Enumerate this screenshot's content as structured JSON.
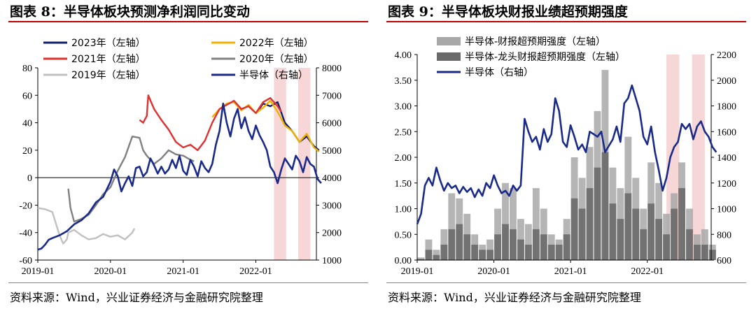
{
  "left": {
    "title": "图表 8：半导体板块预测净利润同比变动",
    "source": "资料来源：Wind，兴业证券经济与金融研究院整理",
    "colors": {
      "s2023": "#102070",
      "s2022": "#f0b000",
      "s2021": "#e03030",
      "s2020": "#808080",
      "s2019": "#c0c0c0",
      "semi": "#1a2a8a",
      "shade": "#f6d6d6"
    }
  },
  "right": {
    "title": "图表 9：半导体板块财报业绩超预期强度",
    "source": "资料来源：Wind，兴业证券经济与金融研究院整理",
    "colors": {
      "semi": "#1a2a8a",
      "barLight": "#a8a8a8",
      "barDark": "#6a6a6a",
      "shade": "#f6d6d6"
    }
  },
  "chart_data": [
    {
      "type": "line",
      "title": "图表 8：半导体板块预测净利润同比变动",
      "x_ticks": [
        "2019-01",
        "2020-01",
        "2021-01",
        "2022-01"
      ],
      "x_range": [
        "2019-01",
        "2022-11"
      ],
      "y_left": {
        "lim": [
          -60,
          80
        ],
        "ticks": [
          "80",
          "60",
          "40",
          "20",
          "0",
          "-20",
          "-40",
          "-60"
        ]
      },
      "y_right": {
        "lim": [
          1000,
          8000
        ],
        "ticks": [
          "8000",
          "7000",
          "6000",
          "5000",
          "4000",
          "3000",
          "2000",
          "1000"
        ]
      },
      "shaded_ranges": [
        [
          "2022-04",
          "2022-06"
        ],
        [
          "2022-08",
          "2022-10"
        ]
      ],
      "series": [
        {
          "name": "2023年（左轴）",
          "key": "s2023",
          "axis": "left",
          "x": [
            2022.02,
            2022.1,
            2022.2,
            2022.3,
            2022.4,
            2022.5,
            2022.6,
            2022.7,
            2022.8,
            2022.87
          ],
          "y": [
            48,
            54,
            52,
            55,
            40,
            34,
            26,
            30,
            23,
            20
          ]
        },
        {
          "name": "2022年（左轴）",
          "key": "s2022",
          "axis": "left",
          "x": [
            2021.4,
            2021.5,
            2021.6,
            2021.7,
            2021.8,
            2021.9,
            2022.0,
            2022.1,
            2022.2,
            2022.3,
            2022.4,
            2022.5,
            2022.6,
            2022.7,
            2022.8,
            2022.87
          ],
          "y": [
            44,
            50,
            54,
            55,
            49,
            53,
            47,
            51,
            56,
            48,
            38,
            34,
            26,
            32,
            22,
            19
          ]
        },
        {
          "name": "2021年（左轴）",
          "key": "s2021",
          "axis": "left",
          "x": [
            2020.4,
            2020.45,
            2020.5,
            2020.52,
            2020.6,
            2020.7,
            2020.8,
            2020.9,
            2021.0,
            2021.1,
            2021.2,
            2021.3,
            2021.4,
            2021.5,
            2021.6,
            2021.7,
            2021.8,
            2021.9,
            2022.0,
            2022.1,
            2022.2,
            2022.3,
            2022.35
          ],
          "y": [
            42,
            40,
            45,
            60,
            50,
            42,
            35,
            26,
            22,
            24,
            20,
            27,
            40,
            50,
            53,
            56,
            50,
            52,
            47,
            55,
            58,
            52,
            48
          ]
        },
        {
          "name": "2020年（左轴）",
          "key": "s2020",
          "axis": "left",
          "x": [
            2019.42,
            2019.45,
            2019.5,
            2019.6,
            2019.7,
            2019.8,
            2019.9,
            2020.0,
            2020.1,
            2020.2,
            2020.3,
            2020.4,
            2020.45,
            2020.5,
            2020.6,
            2020.7,
            2020.8,
            2020.9,
            2021.0,
            2021.1,
            2021.15
          ],
          "y": [
            -8,
            -22,
            -32,
            -30,
            -27,
            -20,
            -12,
            -7,
            5,
            15,
            30,
            29,
            20,
            16,
            10,
            14,
            20,
            17,
            16,
            13,
            12
          ]
        },
        {
          "name": "2019年（左轴）",
          "key": "s2019",
          "axis": "left",
          "x": [
            2019.0,
            2019.1,
            2019.2,
            2019.3,
            2019.35,
            2019.4,
            2019.42,
            2019.5,
            2019.6,
            2019.7,
            2019.8,
            2019.9,
            2020.0,
            2020.1,
            2020.2,
            2020.3,
            2020.33
          ],
          "y": [
            -22,
            -23,
            -25,
            -42,
            -48,
            -45,
            -40,
            -38,
            -42,
            -45,
            -44,
            -41,
            -43,
            -42,
            -45,
            -40,
            -37
          ]
        },
        {
          "name": "半导体（右轴）",
          "key": "semi",
          "axis": "right",
          "x": [
            2019.0,
            2019.05,
            2019.1,
            2019.15,
            2019.2,
            2019.3,
            2019.4,
            2019.5,
            2019.6,
            2019.7,
            2019.8,
            2019.9,
            2020.0,
            2020.05,
            2020.1,
            2020.15,
            2020.2,
            2020.25,
            2020.3,
            2020.35,
            2020.4,
            2020.45,
            2020.5,
            2020.55,
            2020.6,
            2020.65,
            2020.7,
            2020.75,
            2020.8,
            2020.85,
            2020.9,
            2020.95,
            2021.0,
            2021.05,
            2021.1,
            2021.15,
            2021.2,
            2021.25,
            2021.3,
            2021.35,
            2021.4,
            2021.45,
            2021.5,
            2021.55,
            2021.6,
            2021.65,
            2021.7,
            2021.75,
            2021.8,
            2021.85,
            2021.9,
            2021.95,
            2022.0,
            2022.05,
            2022.1,
            2022.15,
            2022.2,
            2022.25,
            2022.3,
            2022.35,
            2022.4,
            2022.45,
            2022.5,
            2022.55,
            2022.6,
            2022.65,
            2022.7,
            2022.75,
            2022.8,
            2022.85,
            2022.9
          ],
          "y": [
            1380,
            1420,
            1560,
            1740,
            1800,
            1900,
            2050,
            2300,
            2450,
            2700,
            3100,
            3300,
            3850,
            4300,
            4050,
            3500,
            3800,
            4050,
            3700,
            4350,
            4400,
            4050,
            4200,
            4700,
            4450,
            4150,
            4400,
            4150,
            4300,
            4650,
            4350,
            4800,
            4250,
            4100,
            4650,
            4400,
            4050,
            4600,
            4350,
            4200,
            4500,
            5200,
            5700,
            6700,
            6000,
            5500,
            6150,
            6500,
            5800,
            6200,
            5700,
            5400,
            5900,
            5550,
            5300,
            5000,
            4400,
            4200,
            3800,
            4300,
            4700,
            4500,
            4300,
            4800,
            4600,
            4200,
            4750,
            4500,
            4400,
            3950,
            3800
          ]
        }
      ]
    },
    {
      "type": "area",
      "title": "图表 9：半导体板块财报业绩超预期强度",
      "x_ticks": [
        "2019-01",
        "2020-01",
        "2021-01",
        "2022-01"
      ],
      "x_range": [
        "2019-01",
        "2022-11"
      ],
      "y_left": {
        "lim": [
          0,
          4.0
        ],
        "ticks": [
          "4.00",
          "3.50",
          "3.00",
          "2.50",
          "2.00",
          "1.50",
          "1.00",
          "0.50",
          "0.00"
        ]
      },
      "y_right": {
        "lim": [
          600,
          2200
        ],
        "ticks": [
          "2200",
          "2000",
          "1800",
          "1600",
          "1400",
          "1200",
          "1000",
          "800",
          "600"
        ]
      },
      "shaded_ranges": [
        [
          "2022-04",
          "2022-06"
        ],
        [
          "2022-08",
          "2022-10"
        ]
      ],
      "series": [
        {
          "name": "半导体-财报超预期强度（左轴）",
          "key": "barLight",
          "axis": "left",
          "x": [
            2019.05,
            2019.15,
            2019.25,
            2019.35,
            2019.45,
            2019.55,
            2019.65,
            2019.75,
            2019.85,
            2019.95,
            2020.05,
            2020.15,
            2020.25,
            2020.35,
            2020.45,
            2020.55,
            2020.65,
            2020.75,
            2020.85,
            2020.95,
            2021.05,
            2021.15,
            2021.25,
            2021.35,
            2021.45,
            2021.55,
            2021.65,
            2021.75,
            2021.85,
            2021.95,
            2022.05,
            2022.15,
            2022.25,
            2022.35,
            2022.45,
            2022.55,
            2022.65,
            2022.75,
            2022.85
          ],
          "y": [
            0.05,
            0.4,
            0.2,
            0.6,
            1.3,
            1.2,
            0.9,
            0.5,
            0.3,
            0.4,
            1.0,
            1.5,
            1.4,
            0.8,
            0.7,
            1.4,
            1.0,
            0.5,
            0.4,
            0.8,
            2.0,
            1.6,
            2.2,
            2.9,
            3.7,
            1.8,
            1.4,
            2.4,
            1.6,
            1.0,
            1.9,
            1.5,
            0.9,
            1.3,
            1.9,
            1.0,
            0.5,
            0.6,
            0.3
          ]
        },
        {
          "name": "半导体-龙头财报超预期强度（左轴）",
          "key": "barDark",
          "axis": "left",
          "x": [
            2019.05,
            2019.15,
            2019.25,
            2019.35,
            2019.45,
            2019.55,
            2019.65,
            2019.75,
            2019.85,
            2019.95,
            2020.05,
            2020.15,
            2020.25,
            2020.35,
            2020.45,
            2020.55,
            2020.65,
            2020.75,
            2020.85,
            2020.95,
            2021.05,
            2021.15,
            2021.25,
            2021.35,
            2021.45,
            2021.55,
            2021.65,
            2021.75,
            2021.85,
            2021.95,
            2022.05,
            2022.15,
            2022.25,
            2022.35,
            2022.45,
            2022.55,
            2022.65,
            2022.75,
            2022.85
          ],
          "y": [
            0.02,
            0.2,
            0.1,
            0.3,
            0.6,
            0.7,
            0.5,
            0.3,
            0.2,
            0.2,
            0.5,
            0.7,
            0.6,
            0.4,
            0.3,
            0.6,
            0.5,
            0.3,
            0.3,
            0.5,
            1.2,
            1.0,
            1.4,
            1.8,
            2.1,
            1.1,
            0.8,
            1.3,
            1.0,
            0.6,
            1.1,
            0.8,
            0.5,
            1.0,
            1.4,
            0.6,
            0.3,
            0.3,
            0.2
          ]
        },
        {
          "name": "半导体（右轴）",
          "key": "semi",
          "axis": "right",
          "x": [
            2019.0,
            2019.05,
            2019.1,
            2019.15,
            2019.2,
            2019.25,
            2019.3,
            2019.35,
            2019.4,
            2019.45,
            2019.5,
            2019.55,
            2019.6,
            2019.65,
            2019.7,
            2019.75,
            2019.8,
            2019.85,
            2019.9,
            2019.95,
            2020.0,
            2020.05,
            2020.1,
            2020.15,
            2020.2,
            2020.25,
            2020.3,
            2020.35,
            2020.4,
            2020.45,
            2020.5,
            2020.55,
            2020.6,
            2020.65,
            2020.7,
            2020.75,
            2020.8,
            2020.85,
            2020.9,
            2020.95,
            2021.0,
            2021.05,
            2021.1,
            2021.15,
            2021.2,
            2021.25,
            2021.3,
            2021.35,
            2021.4,
            2021.45,
            2021.5,
            2021.55,
            2021.6,
            2021.65,
            2021.7,
            2021.75,
            2021.8,
            2021.85,
            2021.9,
            2021.95,
            2022.0,
            2022.05,
            2022.1,
            2022.15,
            2022.2,
            2022.25,
            2022.3,
            2022.35,
            2022.4,
            2022.45,
            2022.5,
            2022.55,
            2022.6,
            2022.65,
            2022.7,
            2022.75,
            2022.8,
            2022.85,
            2022.9
          ],
          "y": [
            880,
            960,
            1180,
            1240,
            1180,
            1320,
            1220,
            1140,
            1200,
            1160,
            1180,
            1120,
            1170,
            1130,
            1160,
            1090,
            1150,
            1100,
            1200,
            1160,
            1260,
            1180,
            1120,
            1140,
            1100,
            1180,
            1140,
            1180,
            1700,
            1600,
            1520,
            1560,
            1460,
            1620,
            1520,
            1580,
            1860,
            1760,
            1520,
            1480,
            1650,
            1560,
            1460,
            1500,
            1440,
            1600,
            1580,
            1560,
            1600,
            1440,
            1490,
            1540,
            1640,
            1520,
            1820,
            1860,
            1960,
            1860,
            1760,
            1560,
            1500,
            1640,
            1440,
            1300,
            1140,
            1240,
            1400,
            1480,
            1520,
            1660,
            1620,
            1660,
            1540,
            1640,
            1680,
            1600,
            1560,
            1480,
            1440
          ]
        }
      ]
    }
  ]
}
